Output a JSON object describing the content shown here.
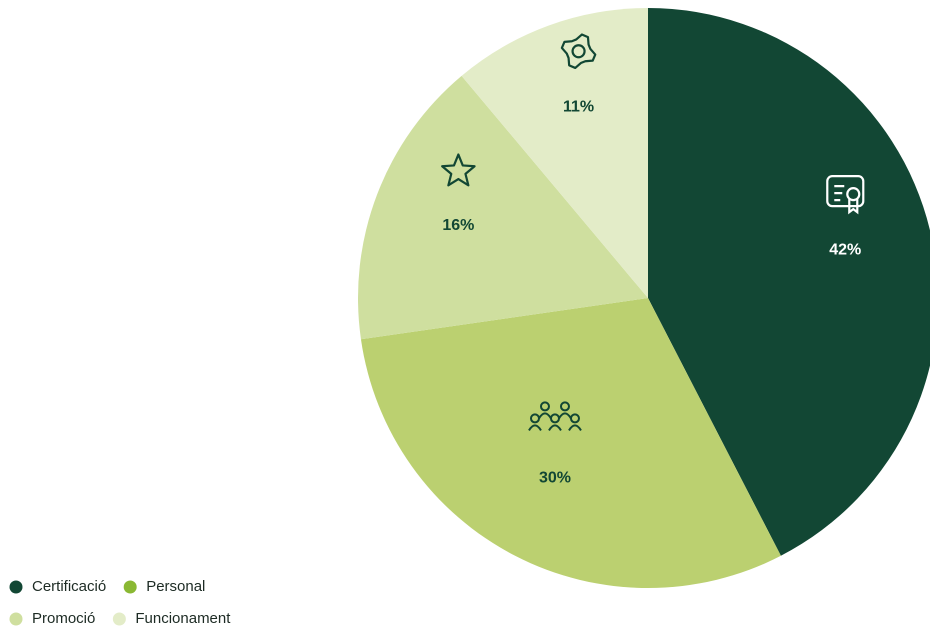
{
  "chart_data": {
    "type": "pie",
    "categories": [
      "Certificació",
      "Personal",
      "Promoció",
      "Funcionament"
    ],
    "values": [
      42,
      30,
      16,
      11
    ],
    "value_labels": [
      "42%",
      "30%",
      "16%",
      "11%"
    ],
    "colors": [
      "#124734",
      "#bbd070",
      "#cfdf9f",
      "#e3ecc8"
    ],
    "legend_colors": [
      "#124734",
      "#8ab833",
      "#cfdf9f",
      "#e3ecc8"
    ],
    "legend": "bottom-left"
  }
}
